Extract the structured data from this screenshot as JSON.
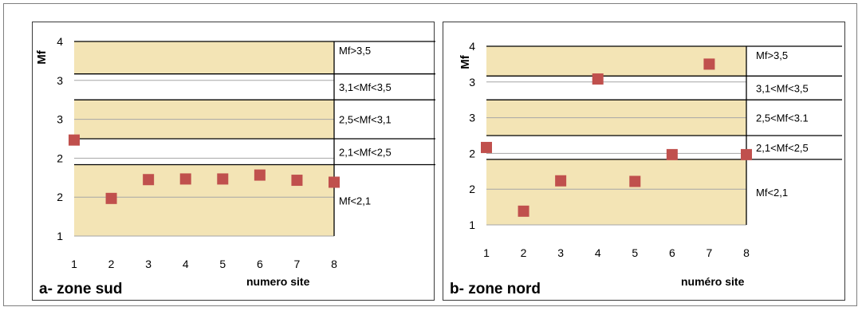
{
  "chart_data": [
    {
      "type": "scatter",
      "title": "a-  zone sud",
      "xlabel": "numero site",
      "ylabel": "Mf",
      "x": [
        1,
        2,
        3,
        4,
        5,
        6,
        7,
        8
      ],
      "y": [
        2.48,
        1.58,
        1.87,
        1.88,
        1.88,
        1.94,
        1.86,
        1.83
      ],
      "ylim": [
        1,
        4
      ],
      "y_tick_labels": [
        "1",
        "2",
        "2",
        "3",
        "3",
        "4"
      ],
      "x_tick_labels": [
        "1",
        "2",
        "3",
        "4",
        "5",
        "6",
        "7",
        "8"
      ],
      "bands": [
        {
          "label": "Mf>3,5",
          "from": 3.5,
          "to": 4.0,
          "shaded": true
        },
        {
          "label": "3,1<Mf<3,5",
          "from": 3.1,
          "to": 3.5,
          "shaded": false
        },
        {
          "label": "2,5<Mf<3,1",
          "from": 2.5,
          "to": 3.1,
          "shaded": true
        },
        {
          "label": "2,1<Mf<2,5",
          "from": 2.1,
          "to": 2.5,
          "shaded": false
        },
        {
          "label": "Mf<2,1",
          "from": 1.0,
          "to": 2.1,
          "shaded": true
        }
      ],
      "colors": {
        "band": "#f3e4b5",
        "marker": "#c0504d",
        "grid": "#a6a6a6"
      }
    },
    {
      "type": "scatter",
      "title": "b-  zone nord",
      "xlabel": "numéro site",
      "ylabel": "Mf",
      "x": [
        1,
        2,
        3,
        4,
        5,
        6,
        7,
        8
      ],
      "y": [
        2.3,
        1.23,
        1.74,
        3.45,
        1.73,
        2.18,
        3.7,
        2.18
      ],
      "ylim": [
        1,
        4
      ],
      "y_tick_labels": [
        "1",
        "2",
        "2",
        "3",
        "3",
        "4"
      ],
      "x_tick_labels": [
        "1",
        "2",
        "3",
        "4",
        "5",
        "6",
        "7",
        "8"
      ],
      "bands": [
        {
          "label": "Mf>3,5",
          "from": 3.5,
          "to": 4.0,
          "shaded": true
        },
        {
          "label": "3,1<Mf<3,5",
          "from": 3.1,
          "to": 3.5,
          "shaded": false
        },
        {
          "label": "2,5<Mf<3.1",
          "from": 2.5,
          "to": 3.1,
          "shaded": true
        },
        {
          "label": "2,1<Mf<2,5",
          "from": 2.1,
          "to": 2.5,
          "shaded": false
        },
        {
          "label": "Mf<2,1",
          "from": 1.0,
          "to": 2.1,
          "shaded": true
        }
      ],
      "colors": {
        "band": "#f3e4b5",
        "marker": "#c0504d",
        "grid": "#a6a6a6"
      }
    }
  ]
}
